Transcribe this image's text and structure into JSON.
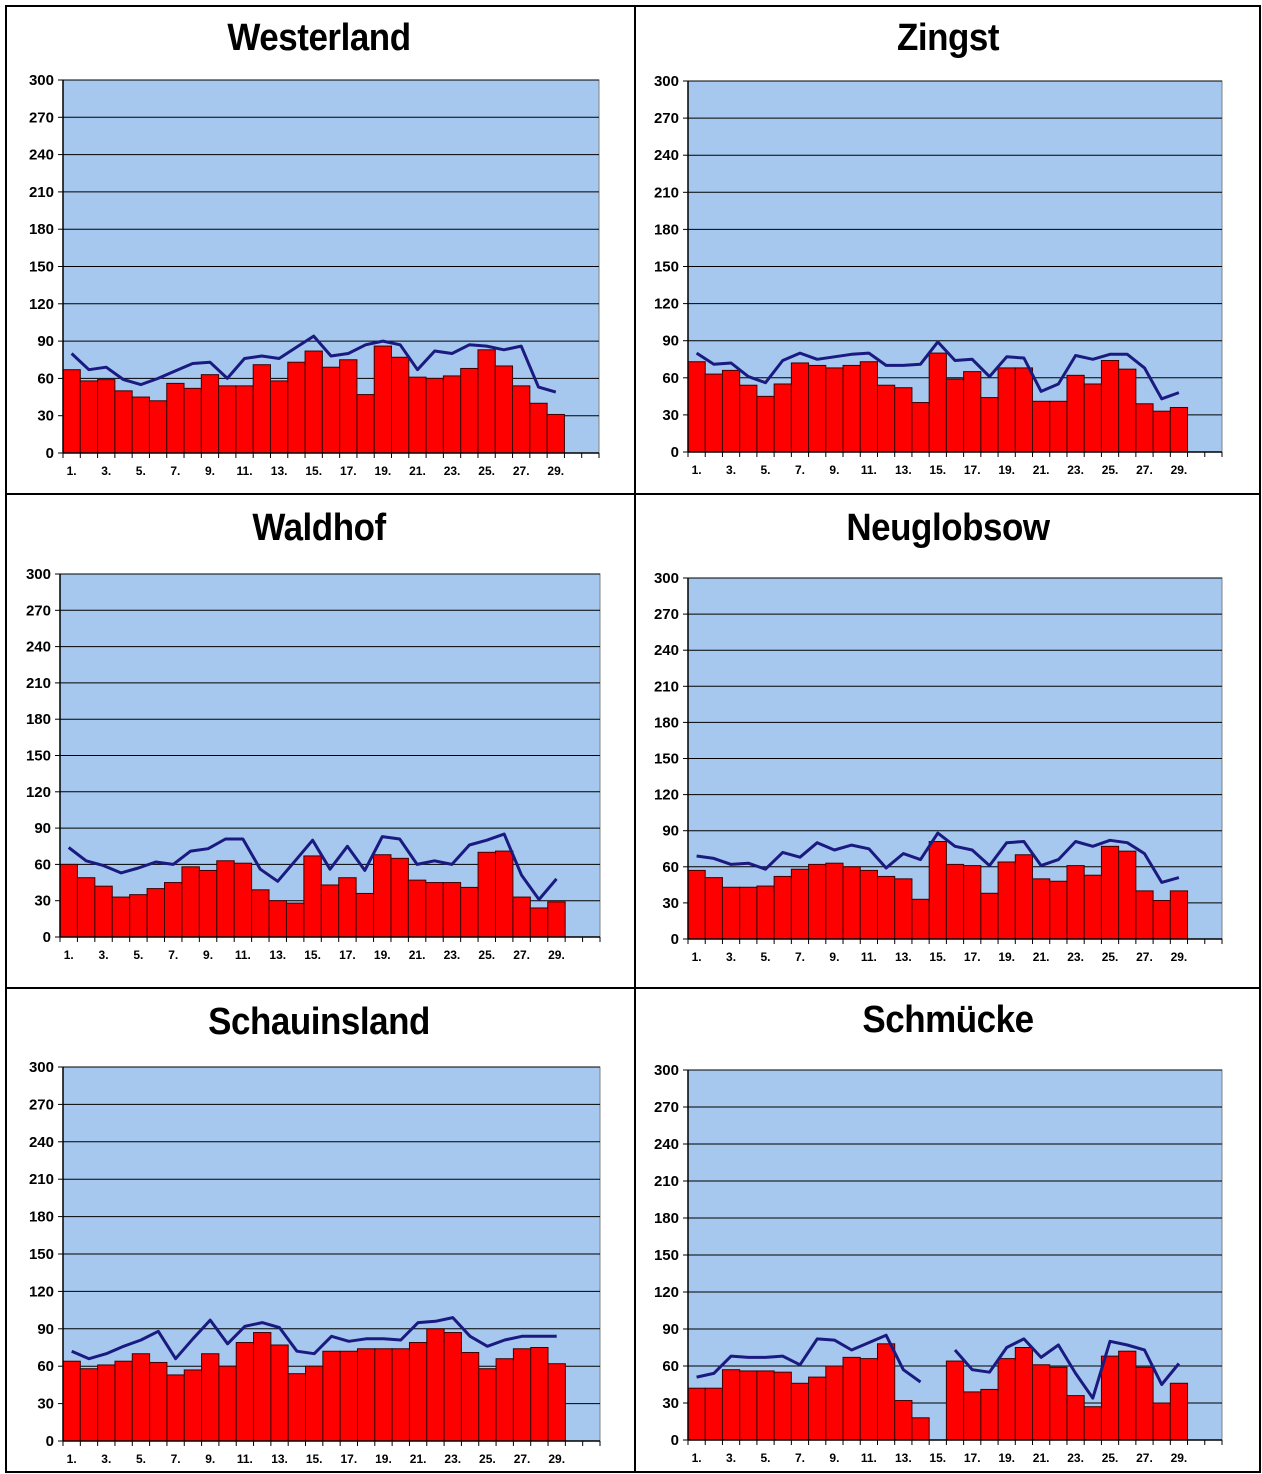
{
  "colors": {
    "plot_bg": "#a6c8ee",
    "bar": "#ff0000",
    "bar_stroke": "#400000",
    "line": "#1a1a80",
    "grid": "#000000"
  },
  "chart_data": [
    {
      "type": "bar",
      "title": "Westerland",
      "ylim": [
        0,
        300
      ],
      "yticks": [
        "0",
        "30",
        "60",
        "90",
        "120",
        "150",
        "180",
        "210",
        "240",
        "270",
        "300"
      ],
      "xticks": [
        "1.",
        "3.",
        "5.",
        "7.",
        "9.",
        "11.",
        "13.",
        "15.",
        "17.",
        "19.",
        "21.",
        "23.",
        "25.",
        "27.",
        "29."
      ],
      "grid": "horizontal",
      "x": [
        1,
        2,
        3,
        4,
        5,
        6,
        7,
        8,
        9,
        10,
        11,
        12,
        13,
        14,
        15,
        16,
        17,
        18,
        19,
        20,
        21,
        22,
        23,
        24,
        25,
        26,
        27,
        28,
        29
      ],
      "bars": [
        67,
        58,
        59,
        50,
        45,
        42,
        56,
        52,
        63,
        54,
        54,
        71,
        58,
        73,
        82,
        69,
        75,
        47,
        86,
        77,
        61,
        60,
        62,
        68,
        83,
        70,
        54,
        40,
        31
      ],
      "line": [
        80,
        67,
        69,
        59,
        55,
        60,
        66,
        72,
        73,
        60,
        76,
        78,
        76,
        85,
        94,
        78,
        80,
        87,
        90,
        87,
        67,
        82,
        80,
        87,
        86,
        83,
        86,
        53,
        49
      ]
    },
    {
      "type": "bar",
      "title": "Zingst",
      "ylim": [
        0,
        300
      ],
      "yticks": [
        "0",
        "30",
        "60",
        "90",
        "120",
        "150",
        "180",
        "210",
        "240",
        "270",
        "300"
      ],
      "xticks": [
        "1.",
        "3.",
        "5.",
        "7.",
        "9.",
        "11.",
        "13.",
        "15.",
        "17.",
        "19.",
        "21.",
        "23.",
        "25.",
        "27.",
        "29."
      ],
      "grid": "horizontal",
      "x": [
        1,
        2,
        3,
        4,
        5,
        6,
        7,
        8,
        9,
        10,
        11,
        12,
        13,
        14,
        15,
        16,
        17,
        18,
        19,
        20,
        21,
        22,
        23,
        24,
        25,
        26,
        27,
        28,
        29
      ],
      "bars": [
        73,
        63,
        66,
        54,
        45,
        55,
        72,
        70,
        68,
        70,
        73,
        54,
        52,
        40,
        80,
        59,
        65,
        44,
        68,
        68,
        41,
        41,
        62,
        55,
        74,
        67,
        39,
        33,
        36
      ],
      "line": [
        80,
        71,
        72,
        61,
        56,
        74,
        80,
        75,
        77,
        79,
        80,
        70,
        70,
        71,
        89,
        74,
        75,
        61,
        77,
        76,
        49,
        55,
        78,
        75,
        79,
        79,
        68,
        43,
        48
      ]
    },
    {
      "type": "bar",
      "title": "Waldhof",
      "ylim": [
        0,
        300
      ],
      "yticks": [
        "0",
        "30",
        "60",
        "90",
        "120",
        "150",
        "180",
        "210",
        "240",
        "270",
        "300"
      ],
      "xticks": [
        "1.",
        "3.",
        "5.",
        "7.",
        "9.",
        "11.",
        "13.",
        "15.",
        "17.",
        "19.",
        "21.",
        "23.",
        "25.",
        "27.",
        "29."
      ],
      "grid": "horizontal",
      "x": [
        1,
        2,
        3,
        4,
        5,
        6,
        7,
        8,
        9,
        10,
        11,
        12,
        13,
        14,
        15,
        16,
        17,
        18,
        19,
        20,
        21,
        22,
        23,
        24,
        25,
        26,
        27,
        28,
        29
      ],
      "bars": [
        60,
        49,
        42,
        33,
        35,
        40,
        45,
        58,
        55,
        63,
        61,
        39,
        30,
        28,
        67,
        43,
        49,
        36,
        68,
        65,
        47,
        45,
        45,
        41,
        70,
        71,
        33,
        24,
        29
      ],
      "line": [
        74,
        63,
        59,
        53,
        57,
        62,
        60,
        71,
        73,
        81,
        81,
        56,
        46,
        63,
        80,
        56,
        75,
        55,
        83,
        81,
        60,
        63,
        60,
        76,
        80,
        85,
        51,
        31,
        48
      ]
    },
    {
      "type": "bar",
      "title": "Neuglobsow",
      "ylim": [
        0,
        300
      ],
      "yticks": [
        "0",
        "30",
        "60",
        "90",
        "120",
        "150",
        "180",
        "210",
        "240",
        "270",
        "300"
      ],
      "xticks": [
        "1.",
        "3.",
        "5.",
        "7.",
        "9.",
        "11.",
        "13.",
        "15.",
        "17.",
        "19.",
        "21.",
        "23.",
        "25.",
        "27.",
        "29."
      ],
      "grid": "horizontal",
      "x": [
        1,
        2,
        3,
        4,
        5,
        6,
        7,
        8,
        9,
        10,
        11,
        12,
        13,
        14,
        15,
        16,
        17,
        18,
        19,
        20,
        21,
        22,
        23,
        24,
        25,
        26,
        27,
        28,
        29
      ],
      "bars": [
        57,
        51,
        43,
        43,
        44,
        52,
        58,
        62,
        63,
        60,
        57,
        52,
        50,
        33,
        81,
        62,
        61,
        38,
        64,
        70,
        50,
        48,
        61,
        53,
        77,
        73,
        40,
        32,
        40
      ],
      "line": [
        69,
        67,
        62,
        63,
        58,
        72,
        68,
        80,
        74,
        78,
        75,
        59,
        71,
        66,
        88,
        77,
        74,
        61,
        80,
        81,
        61,
        66,
        81,
        77,
        82,
        80,
        71,
        47,
        51
      ]
    },
    {
      "type": "bar",
      "title": "Schauinsland",
      "ylim": [
        0,
        300
      ],
      "yticks": [
        "0",
        "30",
        "60",
        "90",
        "120",
        "150",
        "180",
        "210",
        "240",
        "270",
        "300"
      ],
      "xticks": [
        "1.",
        "3.",
        "5.",
        "7.",
        "9.",
        "11.",
        "13.",
        "15.",
        "17.",
        "19.",
        "21.",
        "23.",
        "25.",
        "27.",
        "29."
      ],
      "grid": "horizontal",
      "x": [
        1,
        2,
        3,
        4,
        5,
        6,
        7,
        8,
        9,
        10,
        11,
        12,
        13,
        14,
        15,
        16,
        17,
        18,
        19,
        20,
        21,
        22,
        23,
        24,
        25,
        26,
        27,
        28,
        29
      ],
      "bars": [
        64,
        58,
        61,
        64,
        70,
        63,
        53,
        57,
        70,
        60,
        79,
        87,
        77,
        54,
        60,
        72,
        72,
        74,
        74,
        74,
        79,
        90,
        87,
        71,
        58,
        66,
        74,
        75,
        62
      ],
      "line": [
        72,
        66,
        70,
        76,
        81,
        88,
        66,
        82,
        97,
        78,
        92,
        95,
        91,
        72,
        70,
        84,
        80,
        82,
        82,
        81,
        95,
        96,
        99,
        84,
        76,
        81,
        84,
        84,
        84
      ]
    },
    {
      "type": "bar",
      "title": "Schmücke",
      "ylim": [
        0,
        300
      ],
      "yticks": [
        "0",
        "30",
        "60",
        "90",
        "120",
        "150",
        "180",
        "210",
        "240",
        "270",
        "300"
      ],
      "xticks": [
        "1.",
        "3.",
        "5.",
        "7.",
        "9.",
        "11.",
        "13.",
        "15.",
        "17.",
        "19.",
        "21.",
        "23.",
        "25.",
        "27.",
        "29."
      ],
      "grid": "horizontal",
      "x": [
        1,
        2,
        3,
        4,
        5,
        6,
        7,
        8,
        9,
        10,
        11,
        12,
        13,
        14,
        15,
        16,
        17,
        18,
        19,
        20,
        21,
        22,
        23,
        24,
        25,
        26,
        27,
        28,
        29
      ],
      "bars": [
        42,
        42,
        57,
        56,
        56,
        55,
        46,
        51,
        60,
        67,
        66,
        78,
        32,
        18,
        null,
        64,
        39,
        41,
        66,
        75,
        61,
        59,
        36,
        27,
        68,
        72,
        59,
        30,
        46
      ],
      "line": [
        51,
        54,
        68,
        67,
        67,
        68,
        61,
        82,
        81,
        73,
        79,
        85,
        57,
        47,
        null,
        73,
        57,
        55,
        75,
        82,
        67,
        77,
        54,
        34,
        80,
        77,
        73,
        45,
        62
      ]
    }
  ]
}
